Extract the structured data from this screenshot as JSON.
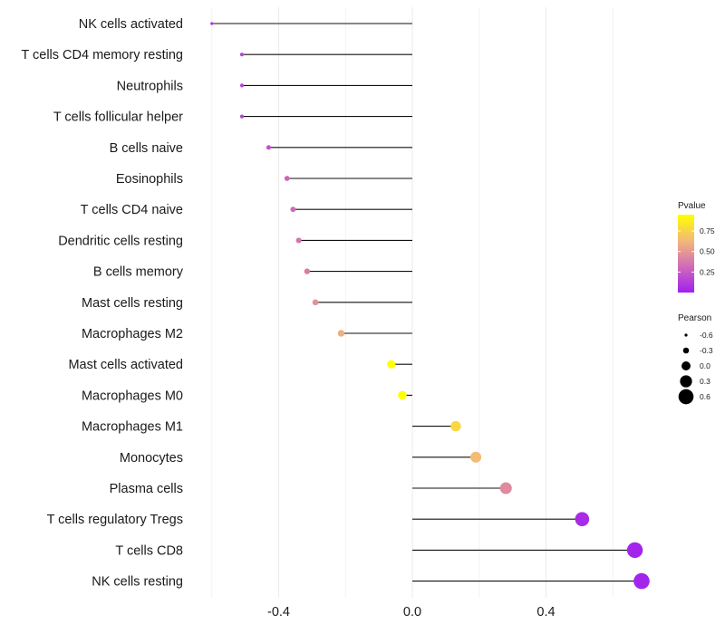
{
  "chart_data": {
    "type": "lollipop",
    "xlabel": "",
    "ylabel": "",
    "xlim": [
      -0.6,
      0.72
    ],
    "x_ticks": [
      {
        "value": -0.4,
        "label": "-0.4"
      },
      {
        "value": 0.0,
        "label": "0.0"
      },
      {
        "value": 0.4,
        "label": "0.4"
      }
    ],
    "categories": [
      "NK cells activated",
      "T cells CD4 memory resting",
      "Neutrophils",
      "T cells follicular helper",
      "B cells naive",
      "Eosinophils",
      "T cells CD4 naive",
      "Dendritic cells resting",
      "B cells memory",
      "Mast cells resting",
      "Macrophages M2",
      "Mast cells activated",
      "Macrophages M0",
      "Macrophages M1",
      "Monocytes",
      "Plasma cells",
      "T cells regulatory  Tregs ",
      "T cells CD8",
      "NK cells resting"
    ],
    "pearson": [
      -0.6,
      -0.51,
      -0.51,
      -0.51,
      -0.43,
      -0.375,
      -0.357,
      -0.34,
      -0.315,
      -0.29,
      -0.213,
      -0.063,
      -0.03,
      0.13,
      0.19,
      0.28,
      0.508,
      0.666,
      0.686
    ],
    "pvalue": [
      0.08,
      0.15,
      0.15,
      0.15,
      0.22,
      0.3,
      0.32,
      0.36,
      0.4,
      0.48,
      0.6,
      0.95,
      0.98,
      0.78,
      0.65,
      0.45,
      0.05,
      0.02,
      0.02
    ],
    "legend_pvalue": {
      "title": "Pvalue",
      "ticks": [
        {
          "value": 0.75,
          "label": "0.75"
        },
        {
          "value": 0.5,
          "label": "0.50"
        },
        {
          "value": 0.25,
          "label": "0.25"
        }
      ],
      "range": [
        0.0,
        0.95
      ],
      "colors": [
        "#a020f0",
        "#d06ab8",
        "#f3b77a",
        "#ffff00"
      ]
    },
    "legend_pearson": {
      "title": "Pearson",
      "values": [
        -0.6,
        -0.3,
        0.0,
        0.3,
        0.6
      ],
      "labels": [
        "-0.6",
        "-0.3",
        "0.0",
        "0.3",
        "0.6"
      ]
    },
    "legend_position": "right"
  }
}
